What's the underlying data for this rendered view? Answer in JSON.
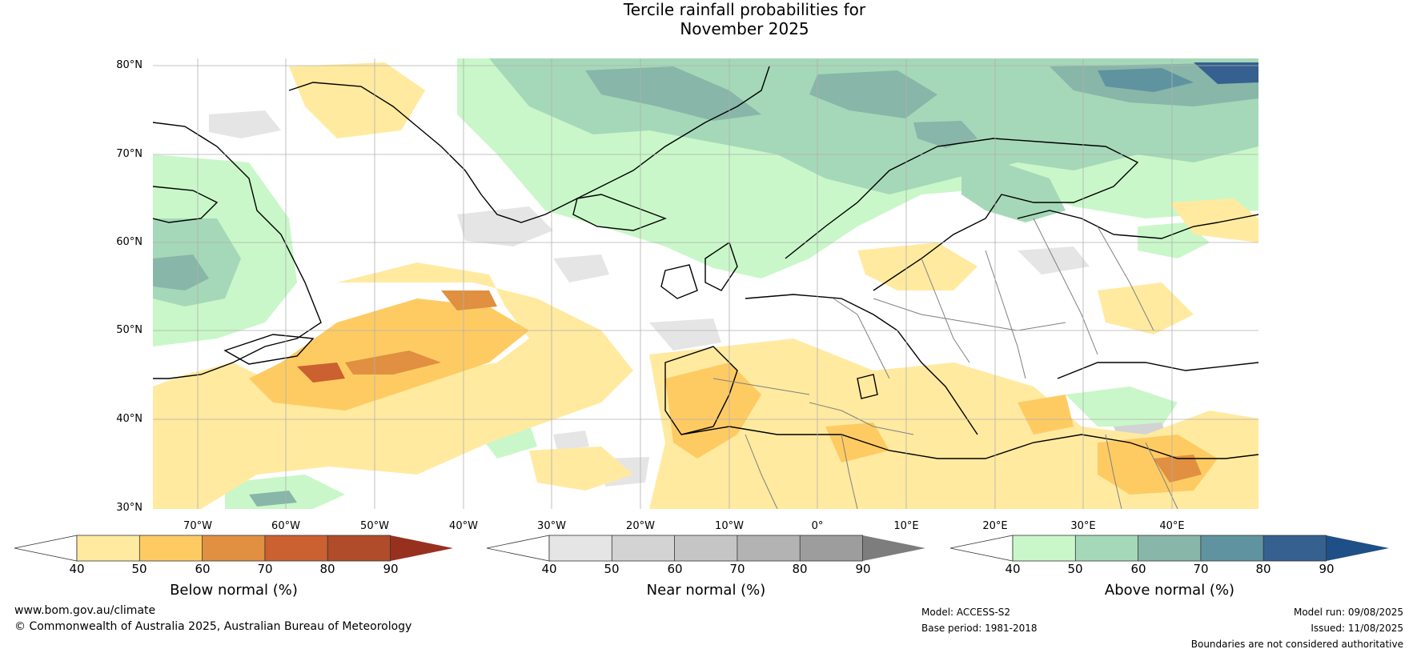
{
  "title": {
    "line1": "Tercile rainfall probabilities for",
    "line2": "November 2025"
  },
  "map": {
    "region": "North Atlantic and Europe",
    "lat_labels": [
      "80°N",
      "70°N",
      "60°N",
      "50°N",
      "40°N",
      "30°N"
    ],
    "lon_labels": [
      "70°W",
      "60°W",
      "50°W",
      "40°W",
      "30°W",
      "20°W",
      "10°W",
      "0°",
      "10°E",
      "20°E",
      "30°E",
      "40°E"
    ],
    "colors": {
      "below": [
        "#ffeaa0",
        "#fecb63",
        "#e09040",
        "#cb6030",
        "#b04c2a",
        "#983020"
      ],
      "near": [
        "#e5e5e5",
        "#d3d3d3",
        "#c5c5c5",
        "#b3b3b3",
        "#9d9d9d",
        "#7d7d7d"
      ],
      "above": [
        "#c9f7c9",
        "#a5d8b8",
        "#88b6a8",
        "#5f93a0",
        "#36608f",
        "#1e4f86"
      ],
      "coast": "#000000",
      "border": "#808080"
    }
  },
  "colorbars": [
    {
      "name": "below",
      "label": "Below normal (%)",
      "ticks": [
        "40",
        "50",
        "60",
        "70",
        "80",
        "90"
      ]
    },
    {
      "name": "near",
      "label": "Near normal (%)",
      "ticks": [
        "40",
        "50",
        "60",
        "70",
        "80",
        "90"
      ]
    },
    {
      "name": "above",
      "label": "Above normal (%)",
      "ticks": [
        "40",
        "50",
        "60",
        "70",
        "80",
        "90"
      ]
    }
  ],
  "footer": {
    "url": "www.bom.gov.au/climate",
    "copyright": "© Commonwealth of Australia 2025, Australian Bureau of Meteorology",
    "model": "Model: ACCESS-S2",
    "base_period": "Base period: 1981-2018",
    "model_run": "Model run: 09/08/2025",
    "issued": "Issued: 11/08/2025",
    "disclaimer": "Boundaries are not considered authoritative"
  }
}
